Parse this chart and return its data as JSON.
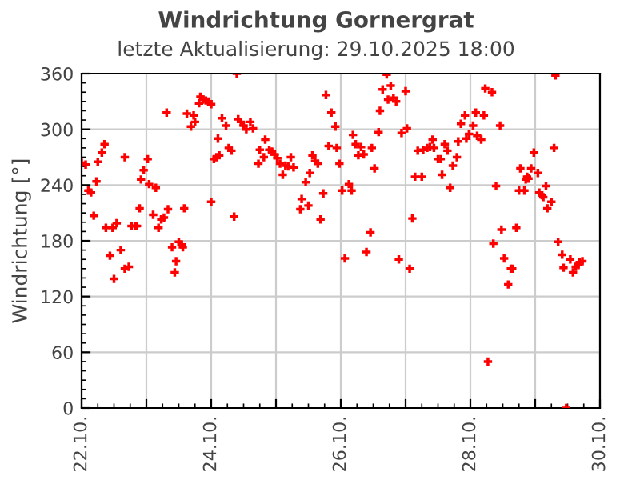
{
  "chart_data": {
    "type": "scatter",
    "title": "Windrichtung Gornergrat",
    "subtitle": "letzte Aktualisierung: 29.10.2025 18:00",
    "ylabel": "Windrichtung [°]",
    "x": [
      "2025-10-22T00:00",
      "2025-10-22T01:30",
      "2025-10-22T02:30",
      "2025-10-22T03:30",
      "2025-10-22T04:30",
      "2025-10-22T05:30",
      "2025-10-22T06:00",
      "2025-10-22T07:30",
      "2025-10-22T08:30",
      "2025-10-22T09:00",
      "2025-10-22T10:30",
      "2025-10-22T11:30",
      "2025-10-22T12:00",
      "2025-10-22T13:00",
      "2025-10-22T14:30",
      "2025-10-22T16:00",
      "2025-10-22T16:00",
      "2025-10-22T17:30",
      "2025-10-22T18:30",
      "2025-10-22T20:00",
      "2025-10-22T20:30",
      "2025-10-22T21:30",
      "2025-10-22T22:00",
      "2025-10-22T23:00",
      "2025-10-23T00:30",
      "2025-10-23T01:00",
      "2025-10-23T02:30",
      "2025-10-23T03:30",
      "2025-10-23T04:30",
      "2025-10-23T05:30",
      "2025-10-23T06:30",
      "2025-10-23T07:30",
      "2025-10-23T08:00",
      "2025-10-23T09:30",
      "2025-10-23T10:30",
      "2025-10-23T11:00",
      "2025-10-23T12:00",
      "2025-10-23T13:00",
      "2025-10-23T13:30",
      "2025-10-23T14:00",
      "2025-10-23T15:00",
      "2025-10-23T16:30",
      "2025-10-23T17:30",
      "2025-10-23T18:00",
      "2025-10-23T19:30",
      "2025-10-23T20:00",
      "2025-10-23T21:00",
      "2025-10-23T22:00",
      "2025-10-23T23:00",
      "2025-10-24T00:00",
      "2025-10-24T00:00",
      "2025-10-24T01:00",
      "2025-10-24T02:00",
      "2025-10-24T02:30",
      "2025-10-24T03:00",
      "2025-10-24T04:00",
      "2025-10-24T05:30",
      "2025-10-24T06:30",
      "2025-10-24T07:30",
      "2025-10-24T08:30",
      "2025-10-24T09:30",
      "2025-10-24T10:00",
      "2025-10-24T11:00",
      "2025-10-24T12:00",
      "2025-10-24T13:00",
      "2025-10-24T14:30",
      "2025-10-24T15:30",
      "2025-10-24T17:30",
      "2025-10-24T18:00",
      "2025-10-24T19:30",
      "2025-10-24T20:00",
      "2025-10-24T21:30",
      "2025-10-24T22:30",
      "2025-10-24T23:30",
      "2025-10-25T00:30",
      "2025-10-25T01:30",
      "2025-10-25T02:30",
      "2025-10-25T03:30",
      "2025-10-25T04:30",
      "2025-10-25T05:30",
      "2025-10-25T06:30",
      "2025-10-25T09:00",
      "2025-10-25T09:30",
      "2025-10-25T11:00",
      "2025-10-25T12:00",
      "2025-10-25T12:30",
      "2025-10-25T13:30",
      "2025-10-25T14:30",
      "2025-10-25T15:30",
      "2025-10-25T16:30",
      "2025-10-25T17:30",
      "2025-10-25T18:30",
      "2025-10-25T19:30",
      "2025-10-25T20:30",
      "2025-10-25T22:00",
      "2025-10-25T22:30",
      "2025-10-25T23:30",
      "2025-10-26T00:30",
      "2025-10-26T01:30",
      "2025-10-26T03:00",
      "2025-10-26T04:00",
      "2025-10-26T04:30",
      "2025-10-26T05:30",
      "2025-10-26T06:30",
      "2025-10-26T07:30",
      "2025-10-26T08:30",
      "2025-10-26T09:30",
      "2025-10-26T11:00",
      "2025-10-26T11:30",
      "2025-10-26T12:30",
      "2025-10-26T14:00",
      "2025-10-26T14:30",
      "2025-10-26T15:30",
      "2025-10-26T17:00",
      "2025-10-26T17:30",
      "2025-10-26T18:30",
      "2025-10-26T19:30",
      "2025-10-26T20:30",
      "2025-10-26T21:30",
      "2025-10-26T22:30",
      "2025-10-27T00:00",
      "2025-10-27T00:30",
      "2025-10-27T01:30",
      "2025-10-27T02:30",
      "2025-10-27T03:30",
      "2025-10-27T04:30",
      "2025-10-27T06:00",
      "2025-10-27T06:30",
      "2025-10-27T08:00",
      "2025-10-27T09:00",
      "2025-10-27T10:00",
      "2025-10-27T10:30",
      "2025-10-27T12:00",
      "2025-10-27T13:00",
      "2025-10-27T13:30",
      "2025-10-27T14:30",
      "2025-10-27T15:30",
      "2025-10-27T16:30",
      "2025-10-27T17:30",
      "2025-10-27T19:00",
      "2025-10-27T19:30",
      "2025-10-27T20:30",
      "2025-10-27T22:00",
      "2025-10-27T22:30",
      "2025-10-27T23:30",
      "2025-10-28T01:00",
      "2025-10-28T02:00",
      "2025-10-28T02:30",
      "2025-10-28T04:00",
      "2025-10-28T05:00",
      "2025-10-28T05:30",
      "2025-10-28T06:30",
      "2025-10-28T08:00",
      "2025-10-28T08:30",
      "2025-10-28T09:30",
      "2025-10-28T11:00",
      "2025-10-28T11:30",
      "2025-10-28T12:30",
      "2025-10-28T14:00",
      "2025-10-28T15:00",
      "2025-10-28T15:30",
      "2025-10-28T17:00",
      "2025-10-28T18:00",
      "2025-10-28T18:30",
      "2025-10-28T20:00",
      "2025-10-28T20:30",
      "2025-10-28T21:00",
      "2025-10-28T21:30",
      "2025-10-28T22:30",
      "2025-10-28T23:30",
      "2025-10-29T01:00",
      "2025-10-29T01:30",
      "2025-10-29T02:30",
      "2025-10-29T03:00",
      "2025-10-29T04:00",
      "2025-10-29T04:30",
      "2025-10-29T06:00",
      "2025-10-29T07:00",
      "2025-10-29T07:30",
      "2025-10-29T08:30",
      "2025-10-29T10:00",
      "2025-10-29T10:30",
      "2025-10-29T11:30",
      "2025-10-29T13:00",
      "2025-10-29T14:00",
      "2025-10-29T15:00",
      "2025-10-29T16:00",
      "2025-10-29T16:30",
      "2025-10-29T17:30"
    ],
    "series": [
      {
        "color": "#ff0000",
        "values": [
          264,
          262,
          234,
          232,
          207,
          244,
          265,
          275,
          284,
          194,
          164,
          194,
          139,
          199,
          170,
          270,
          150,
          152,
          196,
          196,
          196,
          215,
          246,
          256,
          268,
          241,
          208,
          237,
          194,
          203,
          205,
          318,
          214,
          173,
          146,
          158,
          179,
          176,
          173,
          215,
          317,
          303,
          315,
          308,
          328,
          335,
          332,
          331,
          330,
          327,
          222,
          268,
          270,
          290,
          272,
          312,
          304,
          280,
          277,
          206,
          360,
          311,
          308,
          304,
          300,
          308,
          301,
          263,
          278,
          270,
          289,
          278,
          276,
          273,
          269,
          263,
          251,
          261,
          260,
          270,
          259,
          214,
          225,
          243,
          218,
          253,
          272,
          266,
          263,
          203,
          231,
          337,
          282,
          318,
          303,
          280,
          263,
          234,
          161,
          241,
          234,
          294,
          284,
          272,
          281,
          273,
          168,
          189,
          280,
          258,
          297,
          320,
          343,
          359,
          332,
          347,
          334,
          330,
          160,
          296,
          341,
          301,
          150,
          204,
          249,
          277,
          249,
          278,
          280,
          281,
          289,
          280,
          268,
          268,
          251,
          284,
          277,
          237,
          261,
          270,
          287,
          306,
          315,
          290,
          295,
          304,
          318,
          293,
          289,
          315,
          344,
          50,
          340,
          177,
          239,
          304,
          192,
          161,
          133,
          150,
          150,
          194,
          234,
          258,
          234,
          246,
          249,
          247,
          258,
          275,
          253,
          232,
          229,
          227,
          239,
          215,
          222,
          280,
          358,
          179,
          165,
          151,
          0,
          160,
          146,
          152,
          154,
          157,
          158
        ]
      }
    ],
    "marker": "cross",
    "grid": true,
    "xlim": [
      "2025-10-22",
      "2025-10-30"
    ],
    "xticks": [
      {
        "value": "2025-10-22",
        "label": "22.10."
      },
      {
        "value": "2025-10-23",
        "label": null
      },
      {
        "value": "2025-10-24",
        "label": "24.10."
      },
      {
        "value": "2025-10-25",
        "label": null
      },
      {
        "value": "2025-10-26",
        "label": "26.10."
      },
      {
        "value": "2025-10-27",
        "label": null
      },
      {
        "value": "2025-10-28",
        "label": "28.10."
      },
      {
        "value": "2025-10-29",
        "label": null
      },
      {
        "value": "2025-10-30",
        "label": "30.10."
      }
    ],
    "ylim": [
      0,
      360
    ],
    "yticks": [
      0,
      60,
      120,
      180,
      240,
      300,
      360
    ]
  }
}
